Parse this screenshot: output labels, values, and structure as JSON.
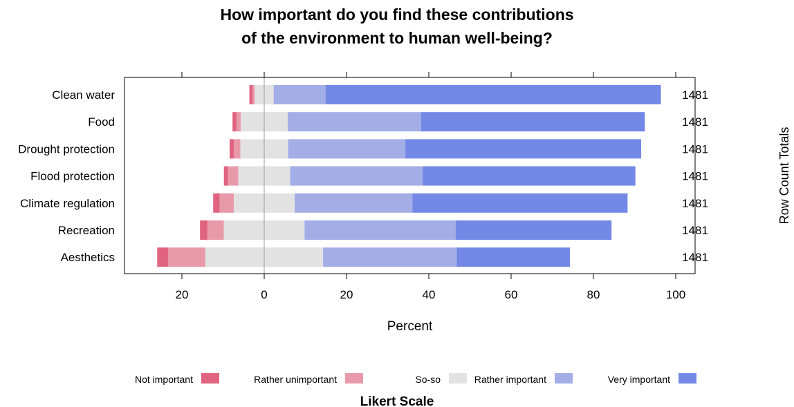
{
  "title_lines": [
    "How important do you find these contributions",
    "of the environment to human well-being?"
  ],
  "right_axis_label": "Row Count Totals",
  "chart_data": {
    "type": "bar",
    "orientation": "horizontal",
    "stacked": "diverging",
    "title": "How important do you find these contributions of the environment to human well-being?",
    "xlabel": "Percent",
    "xlim": [
      -34,
      105
    ],
    "xticks": [
      -20,
      0,
      20,
      40,
      60,
      80,
      100
    ],
    "xtick_labels": [
      "20",
      "0",
      "20",
      "40",
      "60",
      "80",
      "100"
    ],
    "reference_line": 0,
    "categories": [
      "Clean water",
      "Food",
      "Drought protection",
      "Flood protection",
      "Climate regulation",
      "Recreation",
      "Aesthetics"
    ],
    "row_count_totals": [
      "1481",
      "1481",
      "1481",
      "1481",
      "1481",
      "1481",
      "1481"
    ],
    "series": [
      {
        "name": "Not important",
        "color": "#E0637F",
        "values": [
          0.8,
          1.0,
          1.0,
          1.0,
          1.6,
          1.8,
          2.7
        ]
      },
      {
        "name": "Rather unimportant",
        "color": "#E89AAA",
        "values": [
          0.5,
          1.0,
          1.6,
          2.5,
          3.4,
          4.0,
          9.0
        ]
      },
      {
        "name": "So-so",
        "color": "#E2E2E2",
        "values": [
          4.6,
          11.4,
          11.6,
          12.6,
          14.8,
          19.6,
          28.6
        ]
      },
      {
        "name": "Rather important",
        "color": "#A3AEE6",
        "values": [
          12.6,
          32.4,
          28.5,
          32.2,
          28.6,
          36.7,
          32.5
        ]
      },
      {
        "name": "Very important",
        "color": "#7489E6",
        "values": [
          81.5,
          54.4,
          57.3,
          51.7,
          52.3,
          37.9,
          27.5
        ]
      }
    ],
    "legend": {
      "title": "Likert Scale",
      "position": "bottom"
    },
    "grid": false
  }
}
